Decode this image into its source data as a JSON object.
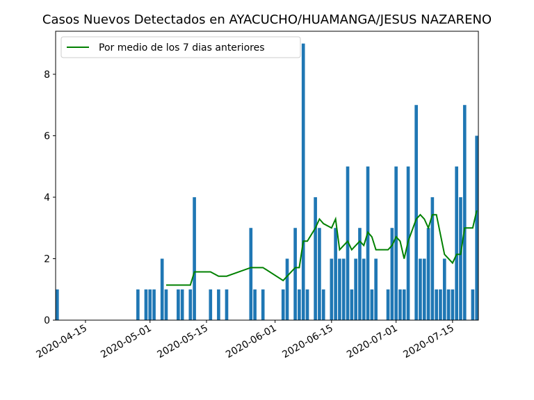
{
  "chart_data": {
    "type": "bar",
    "title": "Casos Nuevos Detectados en AYACUCHO/HUAMANGA/JESUS NAZARENO",
    "xlabel": "",
    "ylabel": "",
    "x_start": "2020-04-08",
    "x_end": "2020-07-21",
    "ylim": [
      0,
      9.4
    ],
    "yticks": [
      0,
      2,
      4,
      6,
      8
    ],
    "xticks": [
      "2020-04-15",
      "2020-05-01",
      "2020-05-15",
      "2020-06-01",
      "2020-06-15",
      "2020-07-01",
      "2020-07-15"
    ],
    "grid": false,
    "legend_position": "top-left",
    "colors": {
      "bars": "#1f77b4",
      "line": "#008000"
    },
    "series": [
      {
        "kind": "bar",
        "points": [
          [
            "2020-04-08",
            1
          ],
          [
            "2020-04-28",
            1
          ],
          [
            "2020-04-30",
            1
          ],
          [
            "2020-05-01",
            1
          ],
          [
            "2020-05-02",
            1
          ],
          [
            "2020-05-04",
            2
          ],
          [
            "2020-05-05",
            1
          ],
          [
            "2020-05-08",
            1
          ],
          [
            "2020-05-09",
            1
          ],
          [
            "2020-05-11",
            1
          ],
          [
            "2020-05-12",
            4
          ],
          [
            "2020-05-16",
            1
          ],
          [
            "2020-05-18",
            1
          ],
          [
            "2020-05-20",
            1
          ],
          [
            "2020-05-26",
            3
          ],
          [
            "2020-05-27",
            1
          ],
          [
            "2020-05-29",
            1
          ],
          [
            "2020-06-03",
            1
          ],
          [
            "2020-06-04",
            2
          ],
          [
            "2020-06-06",
            3
          ],
          [
            "2020-06-07",
            1
          ],
          [
            "2020-06-08",
            9
          ],
          [
            "2020-06-09",
            1
          ],
          [
            "2020-06-11",
            4
          ],
          [
            "2020-06-12",
            3
          ],
          [
            "2020-06-13",
            1
          ],
          [
            "2020-06-15",
            2
          ],
          [
            "2020-06-16",
            3
          ],
          [
            "2020-06-17",
            2
          ],
          [
            "2020-06-18",
            2
          ],
          [
            "2020-06-19",
            5
          ],
          [
            "2020-06-20",
            1
          ],
          [
            "2020-06-21",
            2
          ],
          [
            "2020-06-22",
            3
          ],
          [
            "2020-06-23",
            2
          ],
          [
            "2020-06-24",
            5
          ],
          [
            "2020-06-25",
            1
          ],
          [
            "2020-06-26",
            2
          ],
          [
            "2020-06-29",
            1
          ],
          [
            "2020-06-30",
            3
          ],
          [
            "2020-07-01",
            5
          ],
          [
            "2020-07-02",
            1
          ],
          [
            "2020-07-03",
            1
          ],
          [
            "2020-07-04",
            5
          ],
          [
            "2020-07-06",
            7
          ],
          [
            "2020-07-07",
            2
          ],
          [
            "2020-07-08",
            2
          ],
          [
            "2020-07-09",
            3
          ],
          [
            "2020-07-10",
            4
          ],
          [
            "2020-07-11",
            1
          ],
          [
            "2020-07-12",
            1
          ],
          [
            "2020-07-13",
            2
          ],
          [
            "2020-07-14",
            1
          ],
          [
            "2020-07-15",
            1
          ],
          [
            "2020-07-16",
            5
          ],
          [
            "2020-07-17",
            4
          ],
          [
            "2020-07-18",
            7
          ],
          [
            "2020-07-20",
            1
          ],
          [
            "2020-07-21",
            6
          ]
        ]
      },
      {
        "kind": "line",
        "name": "Por medio de los 7 dias anteriores",
        "points": [
          [
            "2020-05-05",
            1.14
          ],
          [
            "2020-05-11",
            1.14
          ],
          [
            "2020-05-12",
            1.57
          ],
          [
            "2020-05-16",
            1.57
          ],
          [
            "2020-05-18",
            1.43
          ],
          [
            "2020-05-20",
            1.43
          ],
          [
            "2020-05-26",
            1.71
          ],
          [
            "2020-05-29",
            1.71
          ],
          [
            "2020-06-03",
            1.29
          ],
          [
            "2020-06-04",
            1.43
          ],
          [
            "2020-06-06",
            1.71
          ],
          [
            "2020-06-07",
            1.71
          ],
          [
            "2020-06-08",
            2.57
          ],
          [
            "2020-06-09",
            2.57
          ],
          [
            "2020-06-11",
            3.0
          ],
          [
            "2020-06-12",
            3.29
          ],
          [
            "2020-06-13",
            3.14
          ],
          [
            "2020-06-15",
            3.0
          ],
          [
            "2020-06-16",
            3.29
          ],
          [
            "2020-06-17",
            2.29
          ],
          [
            "2020-06-19",
            2.57
          ],
          [
            "2020-06-20",
            2.29
          ],
          [
            "2020-06-22",
            2.57
          ],
          [
            "2020-06-23",
            2.43
          ],
          [
            "2020-06-24",
            2.86
          ],
          [
            "2020-06-25",
            2.71
          ],
          [
            "2020-06-26",
            2.29
          ],
          [
            "2020-06-29",
            2.29
          ],
          [
            "2020-06-30",
            2.43
          ],
          [
            "2020-07-01",
            2.71
          ],
          [
            "2020-07-02",
            2.57
          ],
          [
            "2020-07-03",
            2.0
          ],
          [
            "2020-07-04",
            2.57
          ],
          [
            "2020-07-06",
            3.29
          ],
          [
            "2020-07-07",
            3.43
          ],
          [
            "2020-07-08",
            3.29
          ],
          [
            "2020-07-09",
            3.0
          ],
          [
            "2020-07-10",
            3.43
          ],
          [
            "2020-07-11",
            3.43
          ],
          [
            "2020-07-13",
            2.14
          ],
          [
            "2020-07-15",
            1.86
          ],
          [
            "2020-07-16",
            2.14
          ],
          [
            "2020-07-17",
            2.14
          ],
          [
            "2020-07-18",
            3.0
          ],
          [
            "2020-07-20",
            3.0
          ],
          [
            "2020-07-21",
            3.57
          ]
        ]
      }
    ]
  }
}
